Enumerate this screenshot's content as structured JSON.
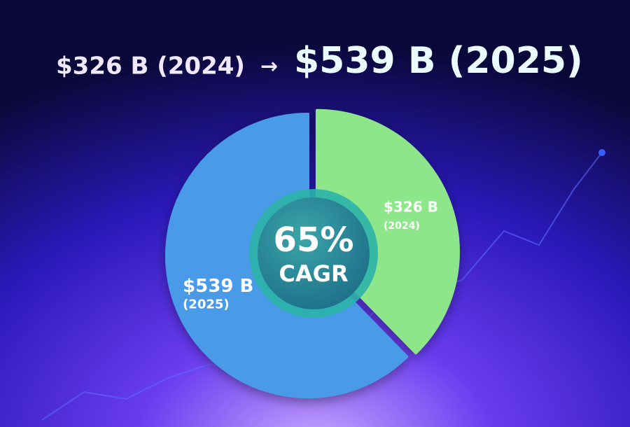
{
  "chart_data": {
    "type": "pie",
    "title_from": "$326 B (2024)",
    "title_arrow": "→",
    "title_to": "$539 B (2025)",
    "categories": [
      "(2024)",
      "(2025)"
    ],
    "values": [
      326,
      539
    ],
    "value_labels": [
      "$326 B",
      "$539 B"
    ],
    "colors": [
      "#8ee68a",
      "#4a9be8"
    ],
    "center_text": "65%",
    "center_subtext": "CAGR"
  }
}
